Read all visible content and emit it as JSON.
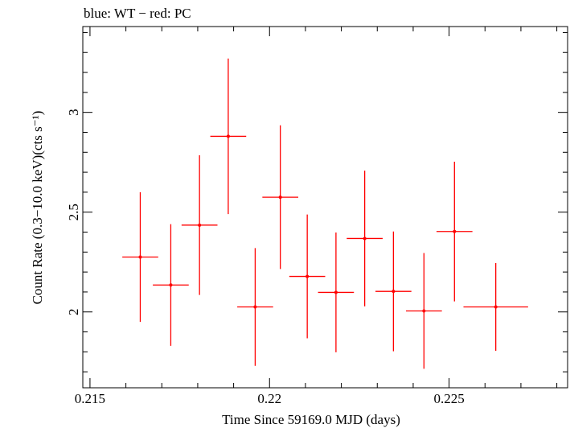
{
  "header_text": "blue: WT − red: PC",
  "chart_data": {
    "type": "scatter",
    "title": "blue: WT − red: PC",
    "xlabel": "Time Since 59169.0 MJD (days)",
    "ylabel": "Count Rate (0.3−10.0 keV)(cts s⁻¹)",
    "xlim": [
      0.2148,
      0.2283
    ],
    "ylim": [
      1.62,
      3.43
    ],
    "x_ticks": [
      0.215,
      0.22,
      0.225
    ],
    "x_tick_labels": [
      "0.215",
      "0.22",
      "0.225"
    ],
    "y_ticks": [
      2,
      2.5,
      3
    ],
    "y_tick_labels": [
      "2",
      "2.5",
      "3"
    ],
    "grid": false,
    "series": [
      {
        "color": "#ff0000",
        "points": [
          {
            "x": 0.2164,
            "y": 2.275,
            "xerr": 0.0005,
            "yerr_low": 0.325,
            "yerr_high": 0.325
          },
          {
            "x": 0.21725,
            "y": 2.135,
            "xerr": 0.0005,
            "yerr_low": 0.305,
            "yerr_high": 0.305
          },
          {
            "x": 0.21805,
            "y": 2.435,
            "xerr": 0.0005,
            "yerr_low": 0.35,
            "yerr_high": 0.35
          },
          {
            "x": 0.21885,
            "y": 2.88,
            "xerr": 0.0005,
            "yerr_low": 0.39,
            "yerr_high": 0.39
          },
          {
            "x": 0.2196,
            "y": 2.025,
            "xerr": 0.0005,
            "yerr_low": 0.295,
            "yerr_high": 0.295
          },
          {
            "x": 0.2203,
            "y": 2.575,
            "xerr": 0.0005,
            "yerr_low": 0.36,
            "yerr_high": 0.36
          },
          {
            "x": 0.22105,
            "y": 2.178,
            "xerr": 0.0005,
            "yerr_low": 0.31,
            "yerr_high": 0.31
          },
          {
            "x": 0.22185,
            "y": 2.098,
            "xerr": 0.0005,
            "yerr_low": 0.3,
            "yerr_high": 0.3
          },
          {
            "x": 0.22265,
            "y": 2.368,
            "xerr": 0.0005,
            "yerr_low": 0.34,
            "yerr_high": 0.34
          },
          {
            "x": 0.22345,
            "y": 2.103,
            "xerr": 0.0005,
            "yerr_low": 0.3,
            "yerr_high": 0.3
          },
          {
            "x": 0.2243,
            "y": 2.005,
            "xerr": 0.0005,
            "yerr_low": 0.29,
            "yerr_high": 0.29
          },
          {
            "x": 0.22515,
            "y": 2.403,
            "xerr": 0.0005,
            "yerr_low": 0.35,
            "yerr_high": 0.35
          },
          {
            "x": 0.2263,
            "y": 2.025,
            "xerr": 0.0009,
            "yerr_low": 0.22,
            "yerr_high": 0.22
          }
        ]
      }
    ]
  }
}
